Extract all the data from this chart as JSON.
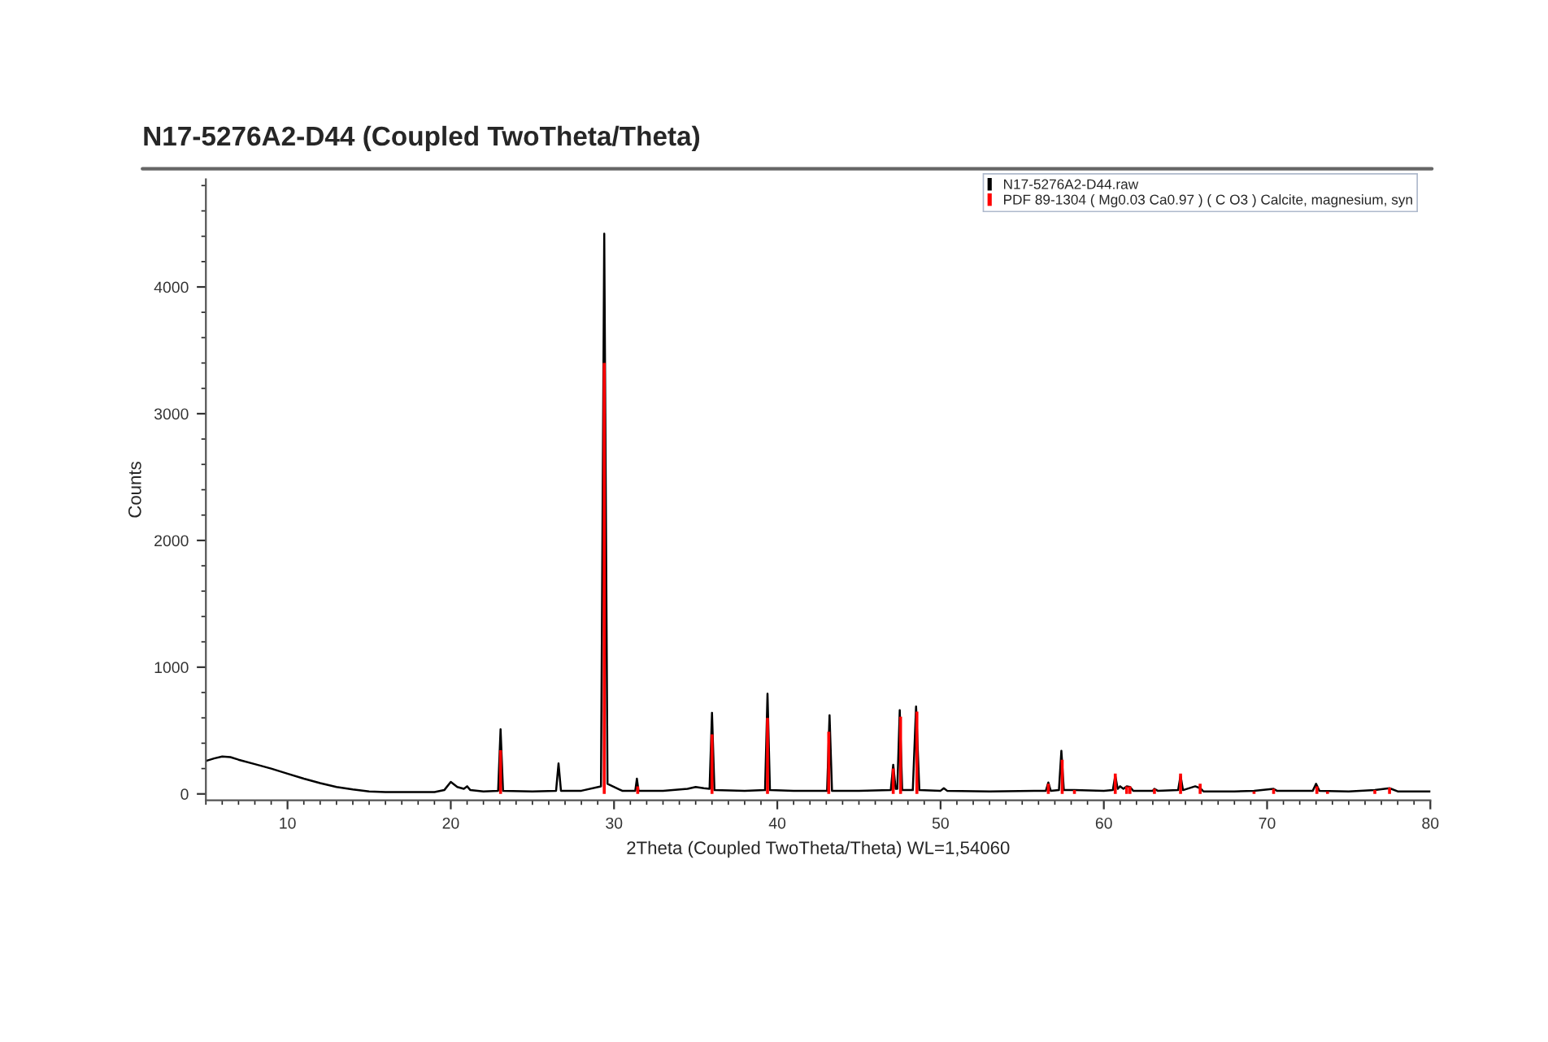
{
  "chart_data": {
    "type": "line",
    "title": "N17-5276A2-D44 (Coupled TwoTheta/Theta)",
    "xlabel": "2Theta (Coupled TwoTheta/Theta) WL=1,54060",
    "ylabel": "Counts",
    "xlim": [
      5,
      80
    ],
    "ylim": [
      -50,
      4850
    ],
    "xticks": [
      10,
      20,
      30,
      40,
      50,
      60,
      70,
      80
    ],
    "yticks": [
      0,
      1000,
      2000,
      3000,
      4000
    ],
    "grid": false,
    "legend": "top right",
    "series": [
      {
        "name": "N17-5276A2-D44.raw",
        "color": "#000000",
        "x": [
          5,
          5.5,
          6,
          6.5,
          7,
          8,
          9,
          10,
          11,
          12,
          13,
          14,
          15,
          16,
          17,
          18,
          19,
          19.6,
          20,
          20.4,
          20.8,
          21,
          21.2,
          22,
          22.9,
          23.05,
          23.2,
          25,
          26.45,
          26.6,
          26.75,
          28,
          29.2,
          29.4,
          29.6,
          30.5,
          31.3,
          31.4,
          31.5,
          33,
          34.5,
          35,
          35.5,
          35.85,
          36.0,
          36.15,
          38,
          39.25,
          39.4,
          39.55,
          41,
          43.05,
          43.2,
          43.35,
          45,
          46.95,
          47.1,
          47.25,
          47.35,
          47.5,
          47.65,
          48.3,
          48.5,
          48.7,
          50,
          50.2,
          50.4,
          53,
          56.45,
          56.6,
          56.75,
          57.25,
          57.4,
          57.55,
          58.2,
          60,
          60.55,
          60.7,
          60.85,
          61.0,
          61.2,
          61.4,
          61.6,
          61.8,
          63,
          63.1,
          63.3,
          64.55,
          64.7,
          64.85,
          65.6,
          65.9,
          66.1,
          68,
          69.2,
          70.4,
          70.6,
          72.8,
          73.0,
          73.2,
          75,
          76.6,
          77.5,
          78,
          80
        ],
        "values": [
          260,
          280,
          295,
          290,
          270,
          235,
          200,
          160,
          120,
          85,
          55,
          35,
          20,
          15,
          15,
          15,
          15,
          30,
          95,
          55,
          40,
          60,
          30,
          20,
          25,
          510,
          25,
          20,
          25,
          240,
          25,
          25,
          60,
          4420,
          80,
          25,
          25,
          120,
          25,
          25,
          40,
          55,
          45,
          40,
          640,
          30,
          25,
          30,
          790,
          30,
          25,
          25,
          620,
          25,
          25,
          30,
          230,
          40,
          40,
          660,
          30,
          30,
          690,
          30,
          25,
          45,
          25,
          20,
          25,
          90,
          25,
          30,
          340,
          30,
          30,
          25,
          30,
          145,
          40,
          60,
          40,
          60,
          55,
          25,
          25,
          40,
          25,
          30,
          145,
          30,
          60,
          45,
          20,
          20,
          25,
          40,
          25,
          25,
          80,
          25,
          20,
          30,
          45,
          20,
          20
        ]
      },
      {
        "name": "PDF 89-1304 ( Mg0.03 Ca0.97 ) ( C O3 ) Calcite, magnesium, syn",
        "type": "bar",
        "color": "#ff0000",
        "x": [
          23.05,
          29.4,
          31.45,
          36.0,
          39.4,
          43.15,
          47.1,
          47.55,
          48.55,
          56.6,
          57.45,
          58.2,
          60.7,
          61.4,
          61.6,
          63.1,
          64.7,
          65.9,
          69.2,
          70.4,
          73.05,
          73.7,
          76.6,
          77.5
        ],
        "values": [
          345,
          3400,
          60,
          470,
          600,
          490,
          200,
          610,
          650,
          80,
          270,
          30,
          160,
          60,
          60,
          40,
          160,
          80,
          20,
          40,
          60,
          20,
          30,
          50
        ]
      }
    ]
  }
}
